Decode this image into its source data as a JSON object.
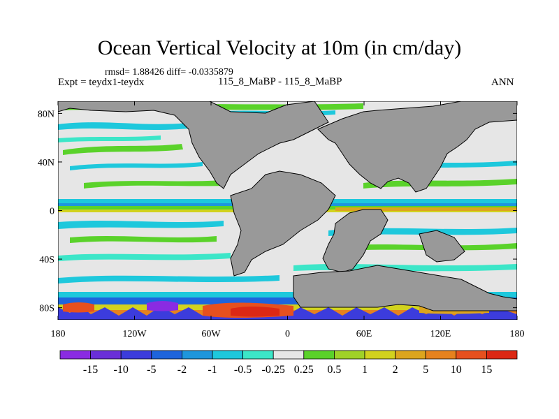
{
  "chart_data": {
    "type": "heatmap",
    "title": "Ocean Vertical Velocity at 10m (in cm/day)",
    "stats": "rmsd= 1.88426  diff= -0.0335879",
    "left_label": "Expt = teydx1-teydx",
    "center_label": "115_8_MaBP - 115_8_MaBP",
    "right_label": "ANN",
    "x_ticks": [
      "180",
      "120W",
      "60W",
      "0",
      "60E",
      "120E",
      "180"
    ],
    "x_tick_values": [
      -180,
      -120,
      -60,
      0,
      60,
      120,
      180
    ],
    "y_ticks": [
      "80N",
      "40N",
      "0",
      "40S",
      "80S"
    ],
    "y_tick_values": [
      80,
      40,
      0,
      -40,
      -80
    ],
    "xlim": [
      -180,
      180
    ],
    "ylim": [
      -90,
      90
    ],
    "colorbar": {
      "labels": [
        "-15",
        "-10",
        "-5",
        "-2",
        "-1",
        "-0.5",
        "-0.25",
        "0.25",
        "0.5",
        "1",
        "2",
        "5",
        "10",
        "15"
      ],
      "colors": [
        "#8a2be2",
        "#6a2fd8",
        "#3c3cdc",
        "#1e64dc",
        "#1e96dc",
        "#1ec8dc",
        "#3ce6c8",
        "#e6e6e6",
        "#5ad22a",
        "#a0d228",
        "#d2d21e",
        "#dca51e",
        "#e6821e",
        "#e6501e",
        "#dc2814"
      ]
    }
  },
  "land_color": "#999999",
  "ocean_color": "#e6e6e6"
}
